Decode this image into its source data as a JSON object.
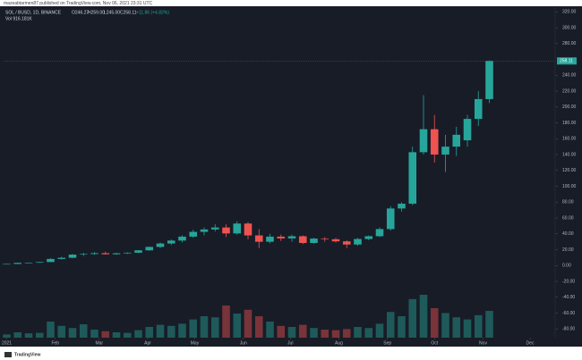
{
  "chart_data": {
    "type": "candlestick",
    "publisher": "mazeabtarmen87 published on TradingView.com, Nov 06, 2021 23:31 UTC",
    "symbol": "SOL / BUSD, 1D, BINANCE",
    "ohlc_header": [
      "O246.27",
      "H259.00",
      "L245.00",
      "C258.11",
      "+11.86 (+4.82%)"
    ],
    "volume_header": "Vol 916.181K",
    "watermark": "TradingView",
    "up_color": "#26a69a",
    "down_color": "#ef5350",
    "x": [
      0,
      7,
      14,
      21,
      28,
      35,
      42,
      49,
      56,
      63,
      70,
      77,
      84,
      91,
      98,
      105,
      112,
      119,
      126,
      133,
      140,
      147,
      154,
      161,
      168,
      175,
      182,
      189,
      196,
      203,
      210,
      217,
      224,
      231,
      238,
      245,
      252,
      259,
      266,
      273,
      280,
      287,
      294,
      301,
      308
    ],
    "open": [
      1.5,
      2.0,
      3.4,
      3.6,
      4.4,
      8.3,
      9.8,
      13.8,
      14.5,
      15.6,
      14.2,
      15.4,
      16.2,
      19.2,
      23.5,
      27.8,
      31.5,
      36.5,
      42.5,
      45.5,
      48,
      40.5,
      53,
      38,
      30,
      36.5,
      34.2,
      37,
      28.5,
      34,
      33.2,
      30.5,
      26.5,
      33.5,
      37,
      46,
      72,
      78,
      143,
      172,
      140,
      150,
      158,
      185,
      210
    ],
    "high": [
      2.2,
      3.6,
      3.9,
      4.6,
      9.5,
      11,
      14.5,
      16.2,
      17,
      17.5,
      16,
      16.5,
      19.5,
      24,
      29,
      33,
      38,
      45,
      48,
      52,
      52,
      56,
      55,
      46,
      40,
      39,
      39,
      38,
      35,
      36,
      35,
      32,
      35,
      38,
      48,
      75,
      80,
      150,
      215,
      190,
      165,
      175,
      190,
      220,
      259
    ],
    "low": [
      1.4,
      1.9,
      2.9,
      3.3,
      4.2,
      7.6,
      9.2,
      12,
      13.5,
      13.8,
      13.5,
      14.5,
      15.8,
      18.5,
      22,
      26,
      29,
      35,
      38,
      43,
      36,
      39,
      33,
      22,
      28,
      31,
      30,
      27,
      27.5,
      30,
      29,
      22,
      25,
      32,
      36,
      44,
      68,
      76,
      140,
      130,
      118,
      138,
      150,
      176,
      205
    ],
    "close": [
      2.0,
      3.4,
      3.6,
      4.4,
      8.3,
      9.8,
      13.8,
      14.5,
      15.6,
      14.2,
      15.4,
      16.2,
      19.2,
      23.5,
      27.8,
      31.5,
      36.5,
      42.5,
      45.5,
      48,
      40.5,
      53,
      38,
      30,
      36.5,
      34.2,
      37,
      28.5,
      34,
      33.2,
      30.5,
      26.5,
      33.5,
      37,
      46,
      72,
      78,
      143,
      172,
      140,
      150,
      165,
      185,
      210,
      258.11
    ],
    "volume": [
      6,
      10,
      8,
      9,
      30,
      22,
      18,
      25,
      15,
      12,
      10,
      9,
      14,
      20,
      24,
      22,
      26,
      34,
      40,
      38,
      60,
      45,
      52,
      40,
      30,
      22,
      20,
      24,
      18,
      15,
      14,
      16,
      20,
      18,
      26,
      48,
      40,
      72,
      80,
      55,
      46,
      38,
      34,
      42,
      50
    ],
    "volume_ylim": [
      0,
      100
    ],
    "xlim": [
      -2,
      350
    ],
    "ylim": [
      -91,
      326
    ],
    "xticks": [
      {
        "value": 0,
        "label": "2021"
      },
      {
        "value": 31,
        "label": "Feb"
      },
      {
        "value": 59,
        "label": "Mar"
      },
      {
        "value": 90,
        "label": "Apr"
      },
      {
        "value": 120,
        "label": "May"
      },
      {
        "value": 151,
        "label": "Jun"
      },
      {
        "value": 181,
        "label": "Jul"
      },
      {
        "value": 212,
        "label": "Aug"
      },
      {
        "value": 243,
        "label": "Sep"
      },
      {
        "value": 273,
        "label": "Oct"
      },
      {
        "value": 304,
        "label": "Nov"
      },
      {
        "value": 334,
        "label": "Dec"
      }
    ],
    "yticks": [
      {
        "value": -80,
        "label": "-80.00"
      },
      {
        "value": -60,
        "label": "-60.00"
      },
      {
        "value": -40,
        "label": "-40.00"
      },
      {
        "value": -20,
        "label": "-20.00"
      },
      {
        "value": 0,
        "label": "0.00"
      },
      {
        "value": 20,
        "label": "20.00"
      },
      {
        "value": 40,
        "label": "40.00"
      },
      {
        "value": 60,
        "label": "60.00"
      },
      {
        "value": 80,
        "label": "80.00"
      },
      {
        "value": 100,
        "label": "100.00"
      },
      {
        "value": 120,
        "label": "120.00"
      },
      {
        "value": 140,
        "label": "140.00"
      },
      {
        "value": 160,
        "label": "160.00"
      },
      {
        "value": 180,
        "label": "180.00"
      },
      {
        "value": 200,
        "label": "200.00"
      },
      {
        "value": 220,
        "label": "220.00"
      },
      {
        "value": 240,
        "label": "240.00"
      },
      {
        "value": 280,
        "label": "280.00"
      },
      {
        "value": 300,
        "label": "300.00"
      },
      {
        "value": 320,
        "label": "320.00"
      }
    ]
  }
}
